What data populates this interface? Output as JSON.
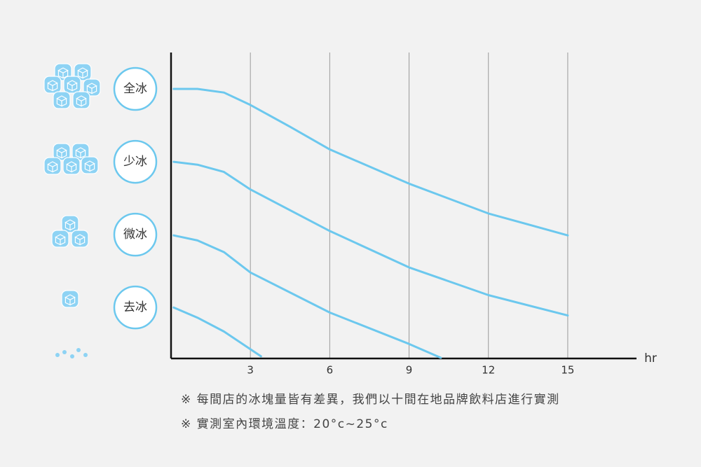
{
  "chart_data": {
    "type": "line",
    "x_label": "hr",
    "xlim": [
      0,
      17.6
    ],
    "xticks": [
      3,
      6,
      9,
      12,
      15
    ],
    "ylim": [
      0.3,
      4.5
    ],
    "yticks": [
      {
        "value": 4,
        "label": "全冰"
      },
      {
        "value": 3,
        "label": "少冰"
      },
      {
        "value": 2,
        "label": "微冰"
      },
      {
        "value": 1,
        "label": "去冰"
      }
    ],
    "grid": true,
    "color": "#6cc8ee",
    "series": [
      {
        "x": [
          0.1,
          1,
          2,
          3,
          4.5,
          6,
          9,
          12,
          15
        ],
        "values": [
          4.0,
          4.0,
          3.95,
          3.78,
          3.48,
          3.17,
          2.7,
          2.29,
          1.99
        ]
      },
      {
        "x": [
          0.1,
          1,
          2,
          3,
          6,
          9,
          12,
          15
        ],
        "values": [
          3.0,
          2.96,
          2.86,
          2.62,
          2.05,
          1.55,
          1.17,
          0.89
        ]
      },
      {
        "x": [
          0.1,
          1,
          2,
          3,
          6,
          9,
          10.2
        ],
        "values": [
          1.99,
          1.92,
          1.76,
          1.48,
          0.93,
          0.5,
          0.31
        ]
      },
      {
        "x": [
          0.1,
          1,
          2,
          3.4
        ],
        "values": [
          1.0,
          0.86,
          0.67,
          0.33
        ]
      }
    ],
    "notes": [
      "※ 每間店的冰塊量皆有差異，我們以十間在地品牌飲料店進行實測",
      "※ 實測室內環境溫度：20°c~25°c"
    ]
  }
}
